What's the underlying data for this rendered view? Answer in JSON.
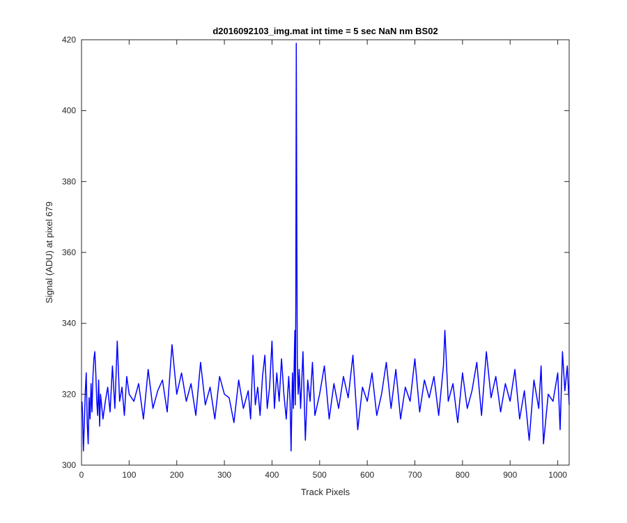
{
  "chart_data": {
    "type": "line",
    "title": "d2016092103_img.mat int time = 5 sec  NaN nm BS02",
    "xlabel": "Track Pixels",
    "ylabel": "Signal (ADU) at pixel 679",
    "xlim": [
      0,
      1024
    ],
    "ylim": [
      300,
      420
    ],
    "xticks": [
      0,
      100,
      200,
      300,
      400,
      500,
      600,
      700,
      800,
      900,
      1000
    ],
    "yticks": [
      300,
      320,
      340,
      360,
      380,
      400,
      420
    ],
    "grid": false,
    "series": [
      {
        "color": "#0000ff",
        "x": [
          1,
          2,
          4,
          6,
          8,
          10,
          12,
          14,
          16,
          18,
          20,
          22,
          24,
          26,
          28,
          30,
          32,
          34,
          36,
          38,
          40,
          45,
          50,
          55,
          60,
          65,
          70,
          75,
          80,
          85,
          90,
          95,
          100,
          110,
          120,
          130,
          140,
          150,
          160,
          170,
          180,
          190,
          200,
          210,
          220,
          230,
          240,
          250,
          260,
          270,
          280,
          290,
          300,
          310,
          320,
          330,
          340,
          350,
          355,
          360,
          365,
          370,
          375,
          380,
          385,
          390,
          395,
          400,
          405,
          410,
          415,
          420,
          425,
          430,
          435,
          438,
          440,
          443,
          445,
          447,
          448,
          449,
          450,
          451,
          452,
          453,
          455,
          457,
          460,
          465,
          470,
          475,
          480,
          485,
          490,
          500,
          510,
          520,
          530,
          540,
          550,
          560,
          570,
          580,
          590,
          600,
          610,
          620,
          630,
          640,
          650,
          660,
          670,
          680,
          690,
          700,
          710,
          720,
          730,
          740,
          750,
          760,
          763,
          770,
          780,
          790,
          800,
          810,
          820,
          830,
          840,
          850,
          860,
          870,
          880,
          890,
          900,
          910,
          920,
          930,
          940,
          950,
          960,
          965,
          970,
          980,
          990,
          1000,
          1005,
          1010,
          1015,
          1020,
          1024
        ],
        "y": [
          318,
          315,
          304,
          312,
          321,
          326,
          312,
          306,
          319,
          313,
          323,
          315,
          325,
          330,
          332,
          326,
          318,
          314,
          324,
          311,
          320,
          313,
          318,
          322,
          315,
          328,
          316,
          335,
          318,
          322,
          314,
          325,
          320,
          318,
          323,
          313,
          327,
          316,
          321,
          324,
          315,
          334,
          320,
          326,
          318,
          323,
          314,
          329,
          317,
          322,
          313,
          325,
          320,
          319,
          312,
          324,
          316,
          321,
          313,
          331,
          317,
          322,
          314,
          325,
          331,
          316,
          322,
          335,
          316,
          326,
          318,
          330,
          320,
          313,
          325,
          318,
          304,
          326,
          316,
          332,
          338,
          317,
          345,
          419,
          370,
          330,
          320,
          327,
          316,
          332,
          307,
          324,
          318,
          329,
          314,
          320,
          328,
          313,
          323,
          316,
          325,
          319,
          331,
          310,
          322,
          318,
          326,
          314,
          320,
          329,
          316,
          327,
          313,
          322,
          318,
          330,
          315,
          324,
          319,
          325,
          314,
          328,
          338,
          318,
          323,
          312,
          326,
          316,
          321,
          329,
          314,
          332,
          319,
          325,
          315,
          323,
          318,
          327,
          313,
          321,
          307,
          324,
          316,
          328,
          306,
          320,
          318,
          326,
          310,
          332,
          321,
          328,
          317
        ]
      }
    ]
  }
}
